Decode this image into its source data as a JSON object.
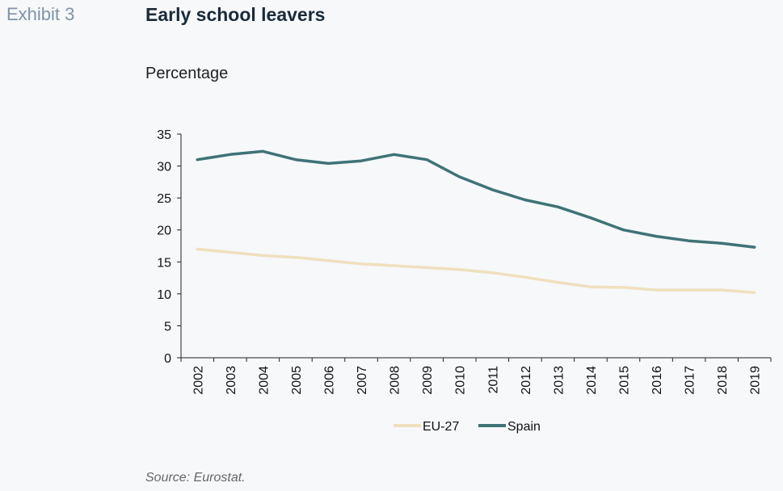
{
  "header": {
    "exhibit_label": "Exhibit 3",
    "title": "Early school leavers",
    "subtitle": "Percentage"
  },
  "footer": {
    "source": "Source: Eurostat."
  },
  "chart_data": {
    "type": "line",
    "title": "Early school leavers",
    "ylabel": "Percentage",
    "xlabel": "",
    "categories": [
      "2002",
      "2003",
      "2004",
      "2005",
      "2006",
      "2007",
      "2008",
      "2009",
      "2010",
      "2011",
      "2012",
      "2013",
      "2014",
      "2015",
      "2016",
      "2017",
      "2018",
      "2019"
    ],
    "ylim": [
      0,
      35
    ],
    "yticks": [
      0,
      5,
      10,
      15,
      20,
      25,
      30,
      35
    ],
    "grid": false,
    "legend_position": "bottom",
    "series": [
      {
        "name": "EU-27",
        "color": "#efe0bd",
        "values": [
          17.0,
          16.5,
          16.0,
          15.7,
          15.2,
          14.7,
          14.4,
          14.1,
          13.8,
          13.3,
          12.6,
          11.8,
          11.1,
          11.0,
          10.6,
          10.6,
          10.6,
          10.2
        ]
      },
      {
        "name": "Spain",
        "color": "#3f7377",
        "values": [
          31.0,
          31.8,
          32.3,
          31.0,
          30.4,
          30.8,
          31.8,
          31.0,
          28.3,
          26.3,
          24.7,
          23.6,
          21.9,
          20.0,
          19.0,
          18.3,
          17.9,
          17.3
        ]
      }
    ]
  }
}
